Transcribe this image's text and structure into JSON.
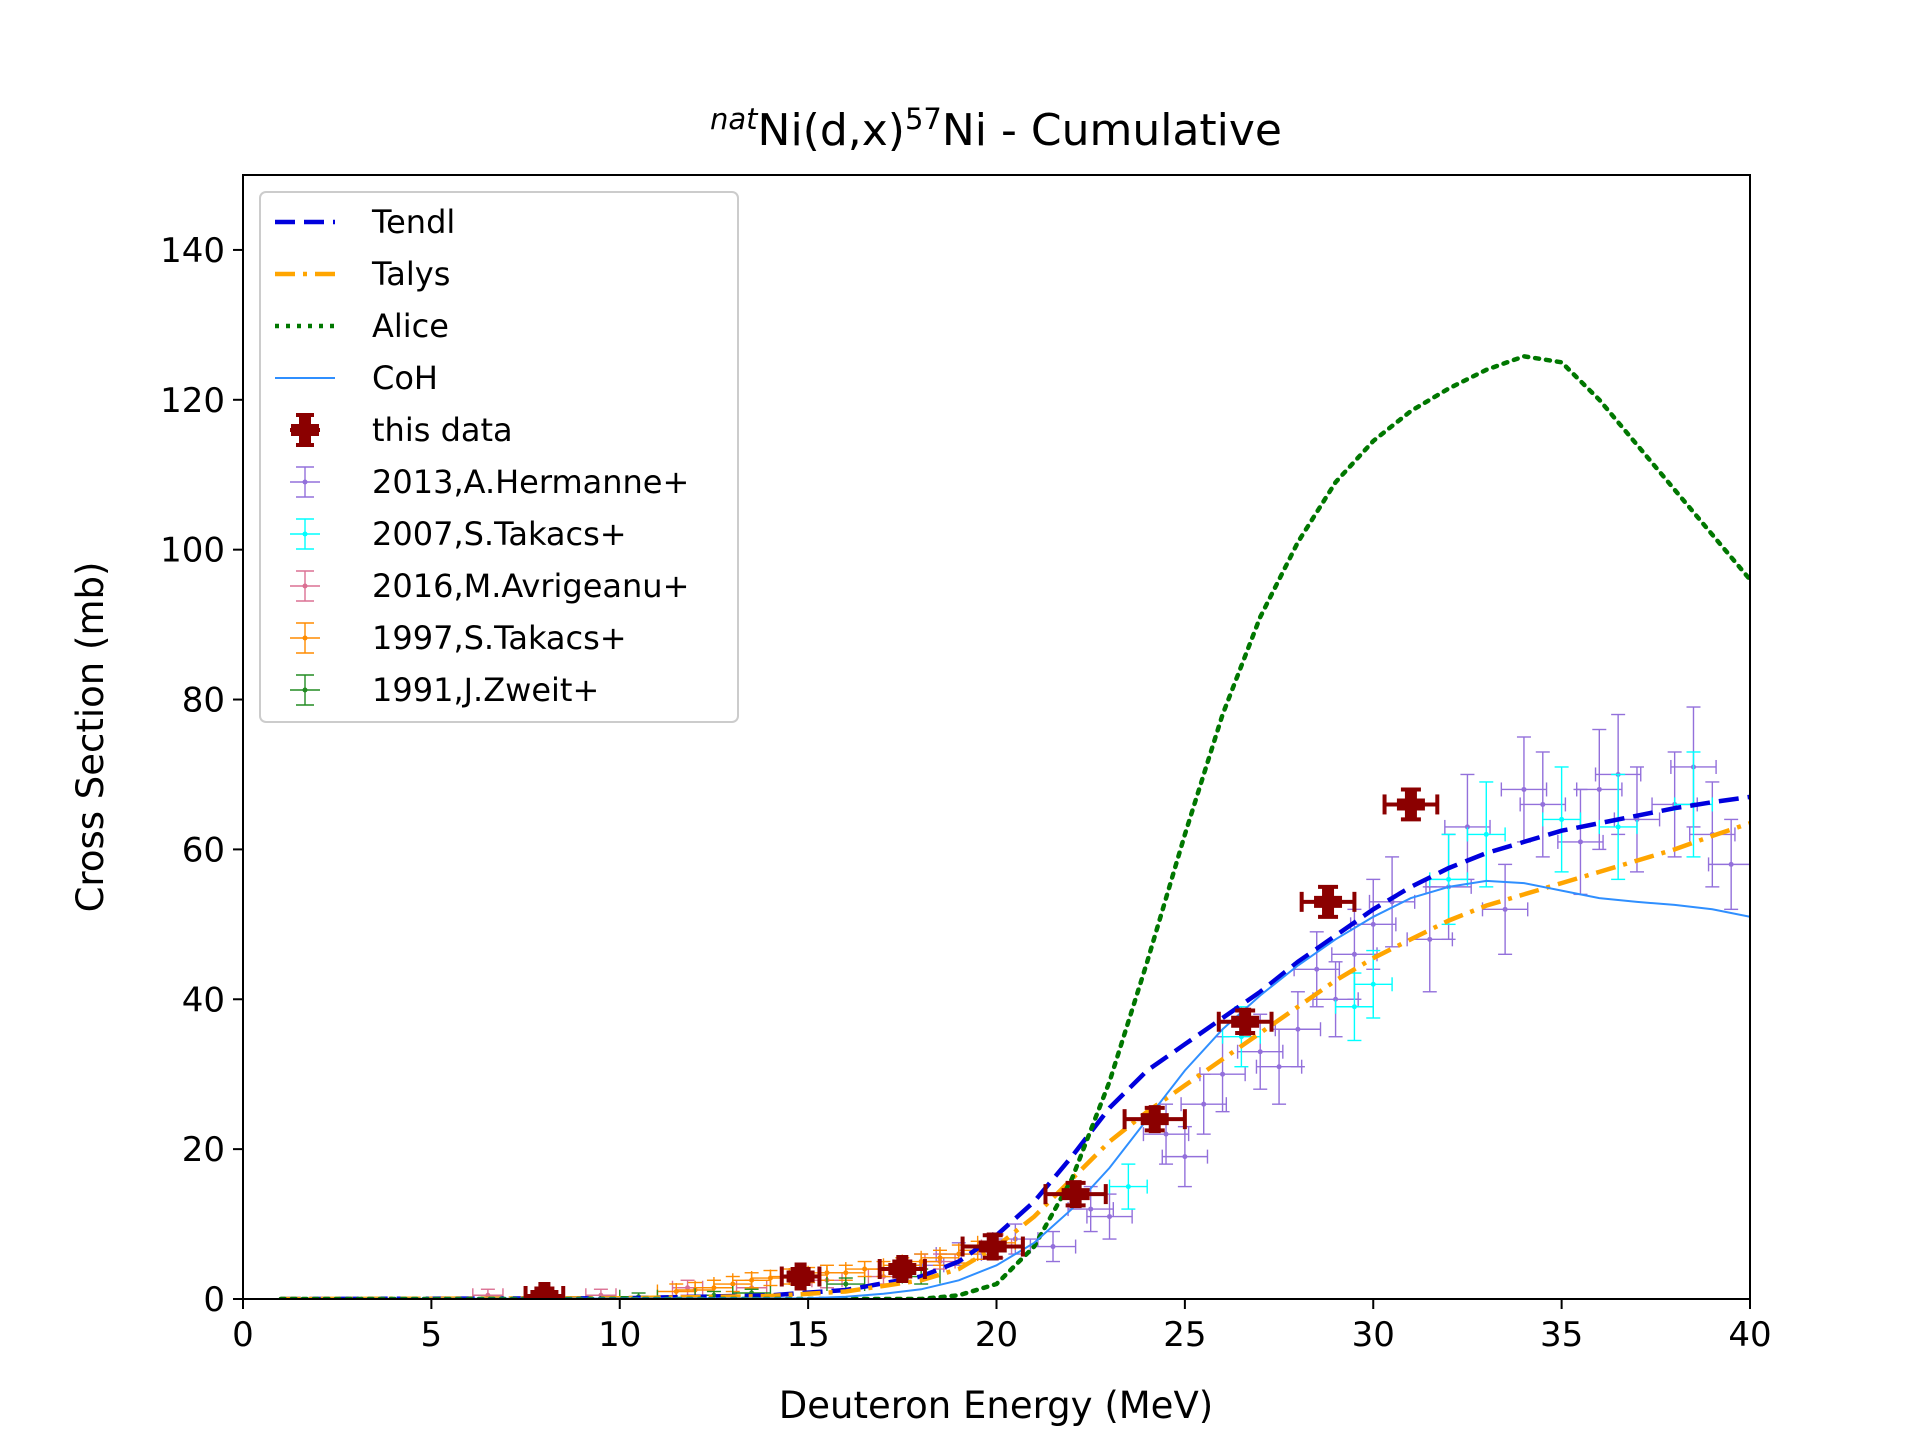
{
  "chart_data": {
    "type": "scatter",
    "title": {
      "prefix_sup": "nat",
      "main": "Ni(d,x)",
      "mid_sup": "57",
      "suffix": "Ni - Cumulative"
    },
    "xlabel": "Deuteron Energy (MeV)",
    "ylabel": "Cross Section (mb)",
    "xlim": [
      0,
      40
    ],
    "ylim": [
      0,
      150
    ],
    "xticks": [
      0,
      5,
      10,
      15,
      20,
      25,
      30,
      35,
      40
    ],
    "yticks": [
      0,
      20,
      40,
      60,
      80,
      100,
      120,
      140
    ],
    "legend_position": "top-left",
    "grid": false,
    "curves": [
      {
        "name": "Tendl",
        "color": "#0000dd",
        "style": "dashed",
        "points": [
          [
            1,
            0
          ],
          [
            10,
            0.1
          ],
          [
            14,
            0.5
          ],
          [
            16,
            1.2
          ],
          [
            18,
            3
          ],
          [
            19,
            5
          ],
          [
            20,
            8.5
          ],
          [
            21,
            13
          ],
          [
            22,
            19
          ],
          [
            23,
            25.5
          ],
          [
            24,
            30.5
          ],
          [
            25,
            34
          ],
          [
            26,
            37.5
          ],
          [
            27,
            41
          ],
          [
            28,
            45
          ],
          [
            29,
            48.5
          ],
          [
            30,
            52
          ],
          [
            31,
            55
          ],
          [
            32,
            57.5
          ],
          [
            33,
            59.5
          ],
          [
            34,
            61
          ],
          [
            35,
            62.5
          ],
          [
            36,
            63.5
          ],
          [
            37,
            64.5
          ],
          [
            38,
            65.5
          ],
          [
            39,
            66.3
          ],
          [
            40,
            67
          ]
        ]
      },
      {
        "name": "Talys",
        "color": "#ffa500",
        "style": "dashdot",
        "points": [
          [
            1,
            0
          ],
          [
            10,
            0.1
          ],
          [
            14,
            0.4
          ],
          [
            16,
            1.0
          ],
          [
            18,
            2.5
          ],
          [
            19,
            4
          ],
          [
            20,
            7
          ],
          [
            21,
            11
          ],
          [
            22,
            16
          ],
          [
            23,
            21
          ],
          [
            24,
            25
          ],
          [
            25,
            28.5
          ],
          [
            26,
            32
          ],
          [
            27,
            35.5
          ],
          [
            28,
            39
          ],
          [
            29,
            42.5
          ],
          [
            30,
            45.5
          ],
          [
            31,
            48
          ],
          [
            32,
            50.5
          ],
          [
            33,
            52.5
          ],
          [
            34,
            54
          ],
          [
            35,
            55.5
          ],
          [
            36,
            57
          ],
          [
            37,
            58.5
          ],
          [
            38,
            60
          ],
          [
            39,
            61.8
          ],
          [
            40,
            63.5
          ]
        ]
      },
      {
        "name": "Alice",
        "color": "#007700",
        "style": "dotted",
        "points": [
          [
            1,
            0
          ],
          [
            15,
            0
          ],
          [
            18,
            0
          ],
          [
            19,
            0.5
          ],
          [
            20,
            2
          ],
          [
            21,
            7
          ],
          [
            22,
            16
          ],
          [
            23,
            29
          ],
          [
            24,
            45
          ],
          [
            25,
            62
          ],
          [
            26,
            78
          ],
          [
            27,
            91
          ],
          [
            28,
            101
          ],
          [
            29,
            109
          ],
          [
            30,
            114.5
          ],
          [
            31,
            118.5
          ],
          [
            32,
            121.5
          ],
          [
            33,
            124
          ],
          [
            34,
            125.8
          ],
          [
            35,
            125
          ],
          [
            36,
            120
          ],
          [
            37,
            114
          ],
          [
            38,
            108
          ],
          [
            39,
            102
          ],
          [
            40,
            96
          ]
        ]
      },
      {
        "name": "CoH",
        "color": "#2f8fff",
        "style": "solid",
        "points": [
          [
            1,
            0
          ],
          [
            15,
            0.1
          ],
          [
            16,
            0.3
          ],
          [
            17,
            0.7
          ],
          [
            18,
            1.3
          ],
          [
            19,
            2.5
          ],
          [
            20,
            4.5
          ],
          [
            21,
            7.5
          ],
          [
            22,
            12
          ],
          [
            23,
            17.5
          ],
          [
            24,
            24
          ],
          [
            25,
            30.5
          ],
          [
            26,
            36
          ],
          [
            27,
            40.5
          ],
          [
            28,
            44.5
          ],
          [
            29,
            48
          ],
          [
            30,
            51
          ],
          [
            31,
            53.5
          ],
          [
            32,
            55
          ],
          [
            33,
            55.8
          ],
          [
            34,
            55.5
          ],
          [
            35,
            54.5
          ],
          [
            36,
            53.5
          ],
          [
            37,
            53
          ],
          [
            38,
            52.6
          ],
          [
            39,
            52
          ],
          [
            40,
            51
          ]
        ]
      }
    ],
    "series": [
      {
        "name": "this data",
        "color": "#8b0000",
        "points": [
          {
            "x": 8.0,
            "y": 0.4,
            "xerr": 0.5,
            "yerr": 1.0
          },
          {
            "x": 14.8,
            "y": 3.0,
            "xerr": 0.5,
            "yerr": 1.0
          },
          {
            "x": 17.5,
            "y": 4.0,
            "xerr": 0.6,
            "yerr": 1.0
          },
          {
            "x": 19.9,
            "y": 7.0,
            "xerr": 0.8,
            "yerr": 1.5
          },
          {
            "x": 22.1,
            "y": 14.0,
            "xerr": 0.8,
            "yerr": 1.5
          },
          {
            "x": 24.2,
            "y": 24.0,
            "xerr": 0.8,
            "yerr": 1.5
          },
          {
            "x": 26.6,
            "y": 37.0,
            "xerr": 0.7,
            "yerr": 1.5
          },
          {
            "x": 28.8,
            "y": 53.0,
            "xerr": 0.7,
            "yerr": 2.0
          },
          {
            "x": 31.0,
            "y": 66.0,
            "xerr": 0.7,
            "yerr": 2.0
          }
        ]
      },
      {
        "name": "2013,A.Hermanne+",
        "color": "#9370db",
        "points": [
          {
            "x": 18.0,
            "y": 4.5,
            "xerr": 0.6,
            "yerr": 1.5
          },
          {
            "x": 19.0,
            "y": 6.0,
            "xerr": 0.6,
            "yerr": 1.5
          },
          {
            "x": 20.5,
            "y": 8.0,
            "xerr": 0.6,
            "yerr": 2.0
          },
          {
            "x": 21.5,
            "y": 7.0,
            "xerr": 0.6,
            "yerr": 2.0
          },
          {
            "x": 22.5,
            "y": 12.0,
            "xerr": 0.6,
            "yerr": 3.0
          },
          {
            "x": 23.0,
            "y": 11.0,
            "xerr": 0.6,
            "yerr": 3.0
          },
          {
            "x": 24.5,
            "y": 22.0,
            "xerr": 0.6,
            "yerr": 4.0
          },
          {
            "x": 25.0,
            "y": 19.0,
            "xerr": 0.6,
            "yerr": 4.0
          },
          {
            "x": 25.5,
            "y": 26.0,
            "xerr": 0.6,
            "yerr": 4.0
          },
          {
            "x": 26.0,
            "y": 30.0,
            "xerr": 0.6,
            "yerr": 5.0
          },
          {
            "x": 27.0,
            "y": 33.0,
            "xerr": 0.6,
            "yerr": 5.0
          },
          {
            "x": 27.5,
            "y": 31.0,
            "xerr": 0.6,
            "yerr": 5.0
          },
          {
            "x": 28.0,
            "y": 36.0,
            "xerr": 0.6,
            "yerr": 5.0
          },
          {
            "x": 28.5,
            "y": 44.0,
            "xerr": 0.6,
            "yerr": 5.0
          },
          {
            "x": 29.0,
            "y": 40.0,
            "xerr": 0.6,
            "yerr": 5.0
          },
          {
            "x": 29.5,
            "y": 46.0,
            "xerr": 0.6,
            "yerr": 6.0
          },
          {
            "x": 30.0,
            "y": 50.0,
            "xerr": 0.6,
            "yerr": 6.0
          },
          {
            "x": 30.5,
            "y": 53.0,
            "xerr": 0.6,
            "yerr": 6.0
          },
          {
            "x": 31.5,
            "y": 48.0,
            "xerr": 0.6,
            "yerr": 7.0
          },
          {
            "x": 32.0,
            "y": 55.0,
            "xerr": 0.6,
            "yerr": 7.0
          },
          {
            "x": 32.5,
            "y": 63.0,
            "xerr": 0.6,
            "yerr": 7.0
          },
          {
            "x": 33.5,
            "y": 52.0,
            "xerr": 0.6,
            "yerr": 6.0
          },
          {
            "x": 34.0,
            "y": 68.0,
            "xerr": 0.6,
            "yerr": 7.0
          },
          {
            "x": 34.5,
            "y": 66.0,
            "xerr": 0.6,
            "yerr": 7.0
          },
          {
            "x": 35.5,
            "y": 61.0,
            "xerr": 0.6,
            "yerr": 7.0
          },
          {
            "x": 36.0,
            "y": 68.0,
            "xerr": 0.6,
            "yerr": 8.0
          },
          {
            "x": 36.5,
            "y": 70.0,
            "xerr": 0.6,
            "yerr": 8.0
          },
          {
            "x": 37.0,
            "y": 64.0,
            "xerr": 0.6,
            "yerr": 7.0
          },
          {
            "x": 38.0,
            "y": 66.0,
            "xerr": 0.6,
            "yerr": 7.0
          },
          {
            "x": 38.5,
            "y": 71.0,
            "xerr": 0.6,
            "yerr": 8.0
          },
          {
            "x": 39.0,
            "y": 62.0,
            "xerr": 0.6,
            "yerr": 7.0
          },
          {
            "x": 39.5,
            "y": 58.0,
            "xerr": 0.6,
            "yerr": 6.0
          }
        ]
      },
      {
        "name": "2007,S.Takacs+",
        "color": "#00ffff",
        "points": [
          {
            "x": 23.5,
            "y": 15.0,
            "xerr": 0.5,
            "yerr": 3.0
          },
          {
            "x": 26.5,
            "y": 35.0,
            "xerr": 0.5,
            "yerr": 4.0
          },
          {
            "x": 29.5,
            "y": 39.0,
            "xerr": 0.5,
            "yerr": 4.5
          },
          {
            "x": 30.0,
            "y": 42.0,
            "xerr": 0.5,
            "yerr": 4.5
          },
          {
            "x": 32.0,
            "y": 56.0,
            "xerr": 0.5,
            "yerr": 6.0
          },
          {
            "x": 33.0,
            "y": 62.0,
            "xerr": 0.5,
            "yerr": 7.0
          },
          {
            "x": 35.0,
            "y": 64.0,
            "xerr": 0.5,
            "yerr": 7.0
          },
          {
            "x": 36.5,
            "y": 63.0,
            "xerr": 0.5,
            "yerr": 7.0
          },
          {
            "x": 38.5,
            "y": 66.0,
            "xerr": 0.5,
            "yerr": 7.0
          }
        ]
      },
      {
        "name": "2016,M.Avrigeanu+",
        "color": "#db7093",
        "points": [
          {
            "x": 6.5,
            "y": 0.5,
            "xerr": 0.4,
            "yerr": 0.8
          },
          {
            "x": 9.5,
            "y": 0.5,
            "xerr": 0.4,
            "yerr": 0.8
          },
          {
            "x": 11.8,
            "y": 1.5,
            "xerr": 0.4,
            "yerr": 1.0
          },
          {
            "x": 13.5,
            "y": 1.5,
            "xerr": 0.4,
            "yerr": 1.0
          },
          {
            "x": 15.5,
            "y": 2.5,
            "xerr": 0.4,
            "yerr": 1.0
          },
          {
            "x": 17.0,
            "y": 3.0,
            "xerr": 0.4,
            "yerr": 1.0
          },
          {
            "x": 18.5,
            "y": 5.0,
            "xerr": 0.4,
            "yerr": 1.0
          },
          {
            "x": 20.0,
            "y": 7.0,
            "xerr": 0.4,
            "yerr": 1.5
          }
        ]
      },
      {
        "name": "1997,S.Takacs+",
        "color": "#ff8c00",
        "points": [
          {
            "x": 11.5,
            "y": 1.0,
            "xerr": 0.5,
            "yerr": 1.0
          },
          {
            "x": 12.0,
            "y": 1.2,
            "xerr": 0.5,
            "yerr": 1.0
          },
          {
            "x": 12.5,
            "y": 1.5,
            "xerr": 0.5,
            "yerr": 1.0
          },
          {
            "x": 13.0,
            "y": 2.0,
            "xerr": 0.5,
            "yerr": 1.0
          },
          {
            "x": 13.5,
            "y": 2.5,
            "xerr": 0.5,
            "yerr": 1.0
          },
          {
            "x": 14.0,
            "y": 2.8,
            "xerr": 0.5,
            "yerr": 1.0
          },
          {
            "x": 14.5,
            "y": 3.0,
            "xerr": 0.5,
            "yerr": 1.0
          },
          {
            "x": 15.0,
            "y": 3.2,
            "xerr": 0.5,
            "yerr": 1.0
          },
          {
            "x": 15.5,
            "y": 3.5,
            "xerr": 0.5,
            "yerr": 1.0
          },
          {
            "x": 16.0,
            "y": 3.5,
            "xerr": 0.5,
            "yerr": 1.0
          },
          {
            "x": 16.5,
            "y": 4.0,
            "xerr": 0.5,
            "yerr": 1.0
          },
          {
            "x": 17.0,
            "y": 4.0,
            "xerr": 0.5,
            "yerr": 1.0
          },
          {
            "x": 17.5,
            "y": 4.5,
            "xerr": 0.5,
            "yerr": 1.0
          },
          {
            "x": 18.0,
            "y": 5.0,
            "xerr": 0.5,
            "yerr": 1.0
          },
          {
            "x": 18.5,
            "y": 5.5,
            "xerr": 0.5,
            "yerr": 1.0
          },
          {
            "x": 19.0,
            "y": 6.0,
            "xerr": 0.5,
            "yerr": 1.2
          },
          {
            "x": 19.5,
            "y": 6.5,
            "xerr": 0.5,
            "yerr": 1.2
          },
          {
            "x": 20.0,
            "y": 7.5,
            "xerr": 0.5,
            "yerr": 1.2
          }
        ]
      },
      {
        "name": "1991,J.Zweit+",
        "color": "#228b22",
        "points": [
          {
            "x": 10.5,
            "y": 0.3,
            "xerr": 0.5,
            "yerr": 0.5
          },
          {
            "x": 12.5,
            "y": 0.5,
            "xerr": 0.5,
            "yerr": 0.5
          },
          {
            "x": 13.5,
            "y": 0.8,
            "xerr": 0.5,
            "yerr": 0.5
          },
          {
            "x": 16.0,
            "y": 2.0,
            "xerr": 0.5,
            "yerr": 0.8
          },
          {
            "x": 18.0,
            "y": 3.0,
            "xerr": 0.5,
            "yerr": 1.0
          }
        ]
      }
    ]
  }
}
